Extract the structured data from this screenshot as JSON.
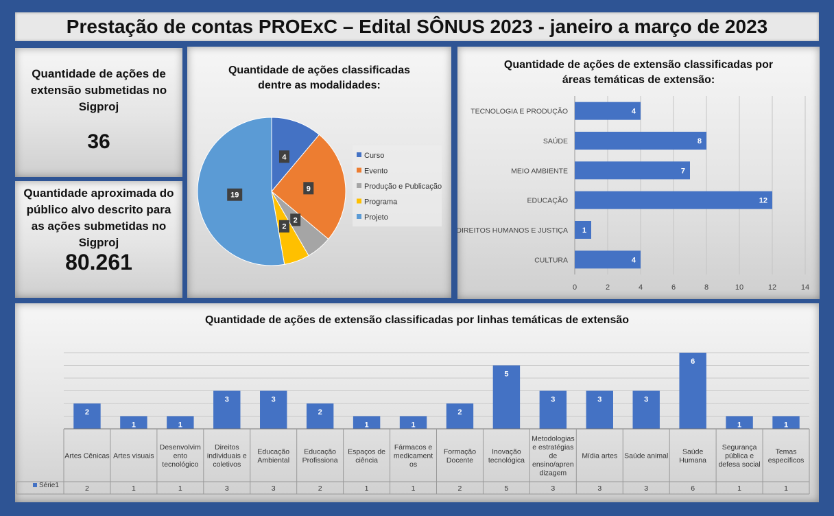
{
  "page_title": "Prestação de contas PROExC – Edital SÔNUS 2023 - janeiro a março de 2023",
  "stat_submitted": {
    "label": "Quantidade de ações de extensão submetidas no Sigproj",
    "value": "36"
  },
  "stat_audience": {
    "label": "Quantidade aproximada do público alvo descrito para as ações submetidas no Sigproj",
    "value": "80.261"
  },
  "chart_data": [
    {
      "type": "pie",
      "title": "Quantidade de ações classificadas dentre as modalidades:",
      "categories": [
        "Curso",
        "Evento",
        "Produção e Publicação",
        "Programa",
        "Projeto"
      ],
      "values": [
        4,
        9,
        2,
        2,
        19
      ],
      "colors": [
        "#4472c4",
        "#ed7d31",
        "#a5a5a5",
        "#ffc000",
        "#5b9bd5"
      ],
      "legend": "right"
    },
    {
      "type": "bar",
      "orientation": "horizontal",
      "title": "Quantidade de ações de extensão classificadas por áreas temáticas de extensão:",
      "categories": [
        "TECNOLOGIA E PRODUÇÃO",
        "SAÚDE",
        "MEIO AMBIENTE",
        "EDUCAÇÃO",
        "DIREITOS HUMANOS E JUSTIÇA",
        "CULTURA"
      ],
      "values": [
        4,
        8,
        7,
        12,
        1,
        4
      ],
      "xlim": [
        0,
        14
      ],
      "ticks": [
        0,
        2,
        4,
        6,
        8,
        10,
        12,
        14
      ],
      "color": "#4472c4",
      "grid": "vertical"
    },
    {
      "type": "bar",
      "title": "Quantidade de ações de extensão classificadas por linhas temáticas de extensão",
      "categories": [
        "Artes Cênicas",
        "Artes visuais",
        "Desenvolvimento tecnológico",
        "Direitos individuais e coletivos",
        "Educação Ambiental",
        "Educação Profissional",
        "Espaços de ciência",
        "Fármacos e medicamentos",
        "Formação Docente",
        "Inovação tecnológica",
        "Metodologias e estratégias de ensino/aprendizagem",
        "Mídia artes",
        "Saúde animal",
        "Saúde Humana",
        "Segurança pública e defesa social",
        "Temas específicos"
      ],
      "category_lines": [
        [
          "Artes Cênicas"
        ],
        [
          "Artes visuais"
        ],
        [
          "Desenvolvim",
          "ento",
          "tecnológico"
        ],
        [
          "Direitos",
          "individuais e",
          "coletivos"
        ],
        [
          "Educação",
          "Ambiental"
        ],
        [
          "Educação",
          "Profissiona"
        ],
        [
          "Espaços de",
          "ciência"
        ],
        [
          "Fármacos e",
          "medicament",
          "os"
        ],
        [
          "Formação",
          "Docente"
        ],
        [
          "Inovação",
          "tecnológica"
        ],
        [
          "Metodologias",
          "e estratégias",
          "de",
          "ensino/apren",
          "dizagem"
        ],
        [
          "Mídia artes"
        ],
        [
          "Saúde animal"
        ],
        [
          "Saúde",
          "Humana"
        ],
        [
          "Segurança",
          "pública e",
          "defesa social"
        ],
        [
          "Temas",
          "específicos"
        ]
      ],
      "series": [
        {
          "name": "Série1",
          "values": [
            2,
            1,
            1,
            3,
            3,
            2,
            1,
            1,
            2,
            5,
            3,
            3,
            3,
            6,
            1,
            1
          ]
        }
      ],
      "ylim": [
        0,
        6
      ],
      "color": "#4472c4",
      "data_table": true
    }
  ]
}
